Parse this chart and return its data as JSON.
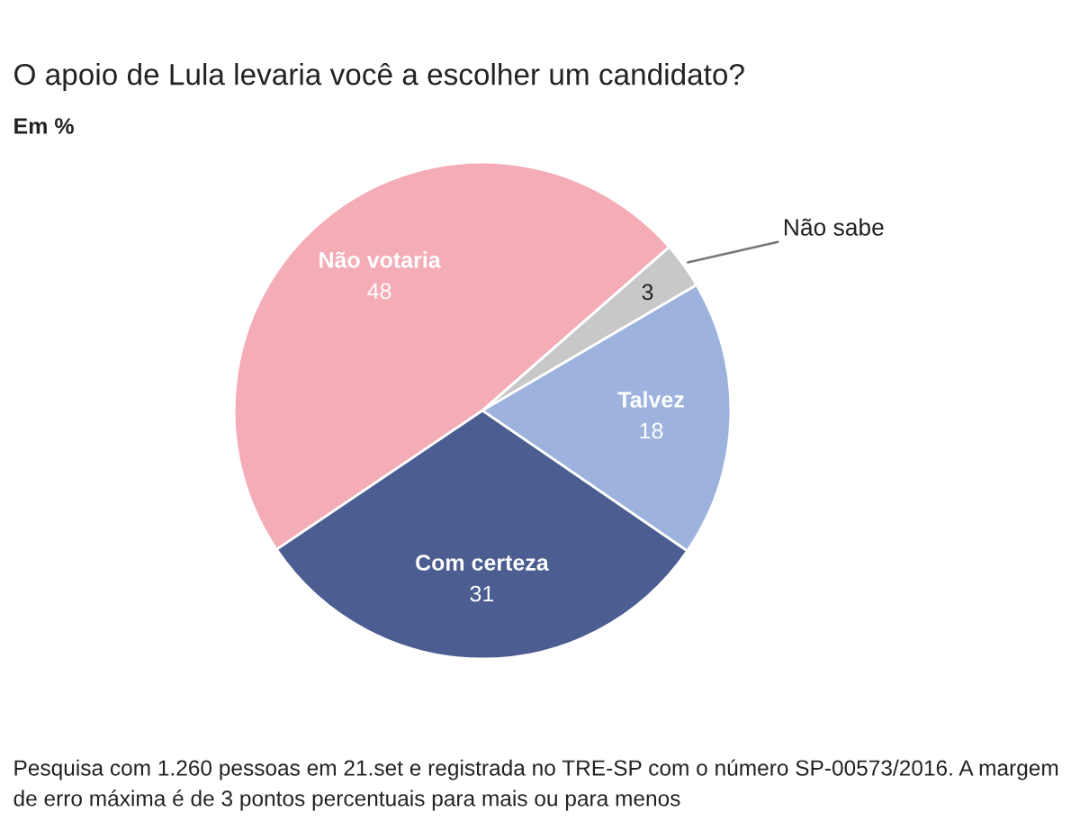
{
  "chart_data": {
    "type": "pie",
    "title": "O apoio de Lula levaria você a escolher um candidato?",
    "subtitle": "Em %",
    "categories": [
      "Não votaria",
      "Não sabe",
      "Talvez",
      "Com certeza"
    ],
    "values": [
      48,
      3,
      18,
      31
    ],
    "colors": [
      "#f4acb7",
      "#c8c8c8",
      "#9db3de",
      "#4b5d91"
    ],
    "data_labels": true,
    "annotations": [
      "Pesquisa com 1.260 pessoas em 21.set e registrada no TRE-SP com o número SP-00573/2016. A margem de erro máxima é de 3 pontos percentuais para mais ou para menos"
    ]
  }
}
